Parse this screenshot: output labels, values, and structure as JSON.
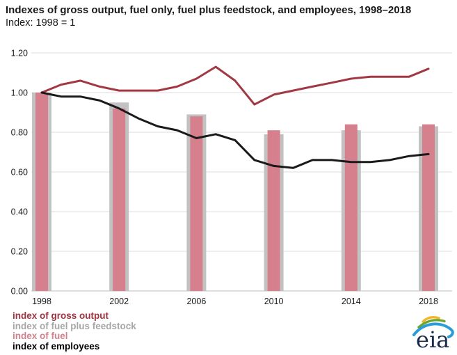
{
  "header": {
    "title": "Indexes of gross output, fuel only, fuel plus feedstock, and employees, 1998–2018",
    "subtitle": "Index: 1998 = 1"
  },
  "chart_data": {
    "type": "bar",
    "subtype": "combo-bar-line",
    "title": "Indexes of gross output, fuel only, fuel plus feedstock, and employees, 1998–2018",
    "subtitle": "Index: 1998 = 1",
    "xlabel": "",
    "ylabel": "",
    "ylim": [
      0,
      1.2
    ],
    "yticks": [
      "0.00",
      "0.20",
      "0.40",
      "0.60",
      "0.80",
      "1.00",
      "1.20"
    ],
    "grid": true,
    "legend_position": "bottom-left",
    "bar_categories": [
      "1998",
      "2002",
      "2006",
      "2010",
      "2014",
      "2018"
    ],
    "bar_series": [
      {
        "key": "fuel-plus-feedstock",
        "name": "index of fuel plus feedstock",
        "color": "#c2c2c2",
        "values": [
          1.0,
          0.95,
          0.89,
          0.79,
          0.81,
          0.83
        ]
      },
      {
        "key": "fuel",
        "name": "index of fuel",
        "color": "#d5808c",
        "values": [
          1.0,
          0.92,
          0.88,
          0.81,
          0.84,
          0.84
        ]
      }
    ],
    "line_x": [
      1998,
      1999,
      2000,
      2001,
      2002,
      2003,
      2004,
      2005,
      2006,
      2007,
      2008,
      2009,
      2010,
      2011,
      2012,
      2013,
      2014,
      2015,
      2016,
      2017,
      2018
    ],
    "line_series": [
      {
        "key": "gross-output",
        "name": "index of gross output",
        "color": "#a23843",
        "values": [
          1.0,
          1.04,
          1.06,
          1.03,
          1.01,
          1.01,
          1.01,
          1.03,
          1.07,
          1.13,
          1.06,
          0.94,
          0.99,
          1.01,
          1.03,
          1.05,
          1.07,
          1.08,
          1.08,
          1.08,
          1.12
        ]
      },
      {
        "key": "employees",
        "name": "index of employees",
        "color": "#1a1a1a",
        "values": [
          1.0,
          0.98,
          0.98,
          0.96,
          0.92,
          0.87,
          0.83,
          0.81,
          0.77,
          0.79,
          0.76,
          0.66,
          0.63,
          0.62,
          0.66,
          0.66,
          0.65,
          0.65,
          0.66,
          0.68,
          0.69
        ]
      }
    ]
  },
  "legend": {
    "items": [
      {
        "label": "index of gross output",
        "color": "#9e323d"
      },
      {
        "label": "index of fuel plus feedstock",
        "color": "#a6a6a6"
      },
      {
        "label": "index of fuel",
        "color": "#d3808c"
      },
      {
        "label": "index of employees",
        "color": "#000000"
      }
    ]
  },
  "logo": {
    "text": "eia"
  }
}
